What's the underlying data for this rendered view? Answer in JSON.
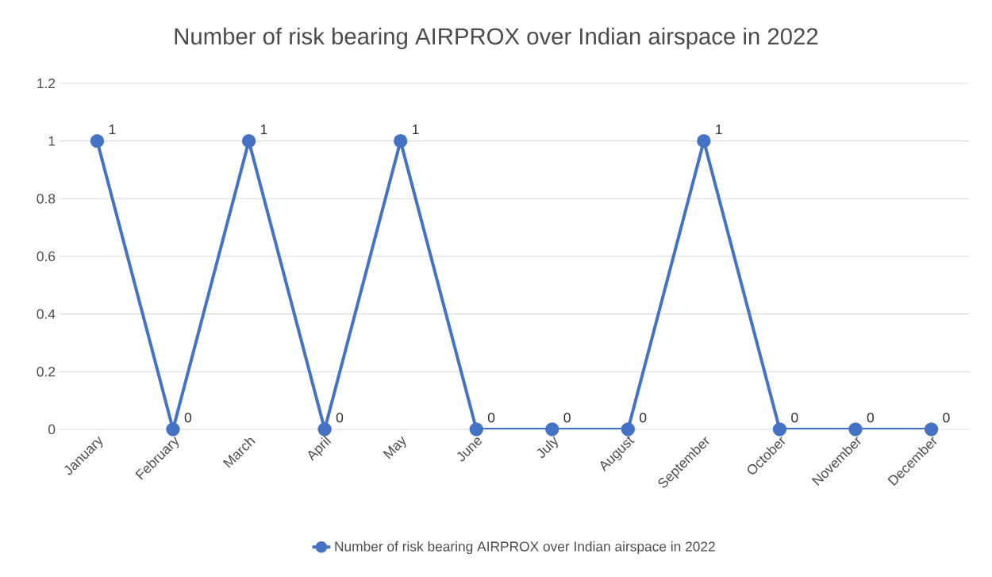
{
  "chart_data": {
    "type": "line",
    "title": "Number of risk bearing AIRPROX  over Indian airspace in 2022",
    "categories": [
      "January",
      "February",
      "March",
      "April",
      "May",
      "June",
      "July",
      "August",
      "September",
      "October",
      "November",
      "December"
    ],
    "series": [
      {
        "name": "Number of risk bearing AIRPROX  over Indian airspace in 2022",
        "color": "#4472c4",
        "values": [
          1,
          0,
          1,
          0,
          1,
          0,
          0,
          0,
          1,
          0,
          0,
          0
        ]
      }
    ],
    "ylim": [
      0,
      1.2
    ],
    "yticks": [
      0,
      0.2,
      0.4,
      0.6,
      0.8,
      1,
      1.2
    ],
    "grid": "y",
    "legend": "bottom",
    "marker": "circle",
    "data_labels": true
  }
}
